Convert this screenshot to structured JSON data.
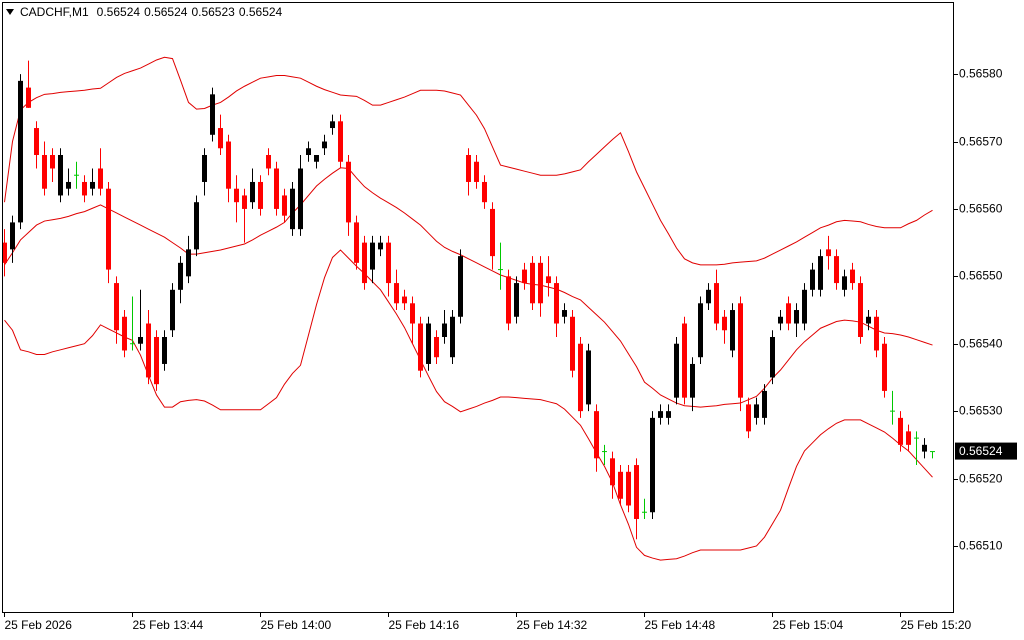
{
  "chart_data": {
    "type": "candlestick",
    "title": "CADCHF,M1",
    "categories": [
      "25 Feb 2026",
      null,
      null,
      null,
      null,
      null,
      null,
      null,
      null,
      null,
      null,
      null,
      null,
      null,
      null,
      null,
      "25 Feb 13:44",
      null,
      null,
      null,
      null,
      null,
      null,
      null,
      null,
      null,
      null,
      null,
      null,
      null,
      null,
      null,
      "25 Feb 14:00",
      null,
      null,
      null,
      null,
      null,
      null,
      null,
      null,
      null,
      null,
      null,
      null,
      null,
      null,
      null,
      "25 Feb 14:16",
      null,
      null,
      null,
      null,
      null,
      null,
      null,
      null,
      null,
      null,
      null,
      null,
      null,
      null,
      null,
      "25 Feb 14:32",
      null,
      null,
      null,
      null,
      null,
      null,
      null,
      null,
      null,
      null,
      null,
      null,
      null,
      null,
      null,
      "25 Feb 14:48",
      null,
      null,
      null,
      null,
      null,
      null,
      null,
      null,
      null,
      null,
      null,
      null,
      null,
      null,
      null,
      "25 Feb 15:04",
      null,
      null,
      null,
      null,
      null,
      null,
      null,
      null,
      null,
      null,
      null,
      null,
      null,
      null,
      null,
      "25 Feb 15:20",
      null,
      null,
      null,
      null
    ],
    "open": [
      0.56555,
      0.56554,
      0.56558,
      0.56578,
      0.56572,
      0.56568,
      0.56568,
      0.56562,
      0.56563,
      0.56565,
      0.56564,
      0.56563,
      0.56566,
      0.56563,
      0.56549,
      0.56544,
      0.5654,
      0.5654,
      0.56543,
      0.56541,
      0.56537,
      0.56542,
      0.56548,
      0.5655,
      0.56554,
      0.56564,
      0.56571,
      0.56572,
      0.5657,
      0.56563,
      0.56562,
      0.56561,
      0.56564,
      0.56568,
      0.56566,
      0.56562,
      0.56557,
      0.56557,
      0.56568,
      0.56567,
      0.56569,
      0.56572,
      0.56573,
      0.56567,
      0.56558,
      0.56555,
      0.56551,
      0.56554,
      0.56555,
      0.56549,
      0.56547,
      0.56546,
      0.56543,
      0.56537,
      0.56541,
      0.56541,
      0.56538,
      0.56544,
      0.56568,
      0.56567,
      0.56564,
      0.5656,
      0.56551,
      0.5655,
      0.56544,
      0.56551,
      0.56552,
      0.56552,
      0.5655,
      0.56549,
      0.56544,
      0.56544,
      0.5654,
      0.56531,
      0.5653,
      0.56524,
      0.56523,
      0.56521,
      0.56521,
      0.56522,
      0.56515,
      0.56515,
      0.56529,
      0.56529,
      0.56532,
      0.56543,
      0.56532,
      0.56538,
      0.56546,
      0.56549,
      0.56544,
      0.56539,
      0.56546,
      0.56531,
      0.56529,
      0.56529,
      0.56535,
      0.56543,
      0.56546,
      0.56543,
      0.56543,
      0.56548,
      0.56548,
      0.56554,
      0.56553,
      0.56548,
      0.56551,
      0.56549,
      0.56543,
      0.56544,
      0.5654,
      0.5653,
      0.56529,
      0.56527,
      0.56526,
      0.56524,
      0.56524
    ],
    "high": [
      0.56557,
      0.56559,
      0.5658,
      0.56582,
      0.56573,
      0.5657,
      0.56569,
      0.56569,
      0.56566,
      0.56567,
      0.56565,
      0.56566,
      0.56569,
      0.56564,
      0.5655,
      0.56545,
      0.56547,
      0.56548,
      0.56545,
      0.56542,
      0.56542,
      0.56549,
      0.56553,
      0.56556,
      0.56562,
      0.56569,
      0.56578,
      0.56574,
      0.56571,
      0.56565,
      0.56563,
      0.56566,
      0.56565,
      0.56569,
      0.56567,
      0.56563,
      0.56564,
      0.56568,
      0.5657,
      0.56568,
      0.56571,
      0.56574,
      0.56574,
      0.56568,
      0.56559,
      0.56556,
      0.56556,
      0.56556,
      0.56556,
      0.56551,
      0.56548,
      0.56547,
      0.56544,
      0.56544,
      0.56542,
      0.56545,
      0.56545,
      0.56554,
      0.56569,
      0.56568,
      0.56565,
      0.56561,
      0.56555,
      0.56551,
      0.5655,
      0.56552,
      0.56553,
      0.56553,
      0.56553,
      0.5655,
      0.56546,
      0.56545,
      0.56541,
      0.5654,
      0.56531,
      0.56525,
      0.56524,
      0.56522,
      0.56522,
      0.56523,
      0.56517,
      0.5653,
      0.56531,
      0.56531,
      0.56541,
      0.56544,
      0.56538,
      0.56547,
      0.56549,
      0.56551,
      0.56545,
      0.56546,
      0.56547,
      0.56532,
      0.56532,
      0.56534,
      0.56542,
      0.56545,
      0.56547,
      0.56546,
      0.56549,
      0.56552,
      0.56554,
      0.56556,
      0.56554,
      0.56551,
      0.56552,
      0.5655,
      0.56545,
      0.56545,
      0.56541,
      0.56533,
      0.5653,
      0.56528,
      0.56527,
      0.56526,
      0.56524
    ],
    "low": [
      0.5655,
      0.56552,
      0.56557,
      0.56575,
      0.56566,
      0.56562,
      0.56564,
      0.56561,
      0.56562,
      0.56563,
      0.56561,
      0.56562,
      0.56562,
      0.56549,
      0.5654,
      0.56538,
      0.56539,
      0.56539,
      0.56534,
      0.56533,
      0.56536,
      0.56541,
      0.56546,
      0.56549,
      0.56553,
      0.56562,
      0.5657,
      0.56568,
      0.56561,
      0.56558,
      0.56555,
      0.5656,
      0.56559,
      0.56565,
      0.56559,
      0.56558,
      0.56556,
      0.56556,
      0.56567,
      0.56566,
      0.56568,
      0.56571,
      0.56566,
      0.56556,
      0.56551,
      0.56548,
      0.56549,
      0.56553,
      0.56547,
      0.56545,
      0.56545,
      0.5654,
      0.56535,
      0.56536,
      0.56537,
      0.5654,
      0.56537,
      0.56543,
      0.56562,
      0.56563,
      0.5656,
      0.56551,
      0.56548,
      0.56542,
      0.56543,
      0.56548,
      0.56545,
      0.56544,
      0.56547,
      0.56541,
      0.56543,
      0.56535,
      0.56529,
      0.5653,
      0.56521,
      0.56522,
      0.56517,
      0.56516,
      0.56515,
      0.56511,
      0.56514,
      0.56514,
      0.56528,
      0.56528,
      0.56531,
      0.56531,
      0.5653,
      0.56537,
      0.56545,
      0.56542,
      0.5654,
      0.56538,
      0.5653,
      0.56526,
      0.56528,
      0.56528,
      0.56534,
      0.56542,
      0.56542,
      0.56541,
      0.56542,
      0.56547,
      0.56547,
      0.56551,
      0.56548,
      0.56547,
      0.56548,
      0.5654,
      0.56542,
      0.56538,
      0.56532,
      0.56528,
      0.56524,
      0.56524,
      0.56522,
      0.56523,
      0.56523
    ],
    "close": [
      0.56552,
      0.56558,
      0.56579,
      0.56575,
      0.56568,
      0.56563,
      0.56566,
      0.56568,
      0.56564,
      0.56565,
      0.56562,
      0.56564,
      0.56563,
      0.56551,
      0.56542,
      0.56539,
      0.5654,
      0.56541,
      0.56535,
      0.56534,
      0.56541,
      0.56548,
      0.56552,
      0.56554,
      0.56561,
      0.56568,
      0.56577,
      0.56569,
      0.56563,
      0.56561,
      0.5656,
      0.56564,
      0.5656,
      0.56566,
      0.5656,
      0.56559,
      0.56563,
      0.56566,
      0.56569,
      0.56568,
      0.5657,
      0.56573,
      0.56567,
      0.56558,
      0.56552,
      0.56549,
      0.56555,
      0.56555,
      0.56549,
      0.56546,
      0.56546,
      0.56543,
      0.56536,
      0.56543,
      0.56538,
      0.56543,
      0.56544,
      0.56553,
      0.56564,
      0.56564,
      0.56561,
      0.56553,
      0.56551,
      0.56543,
      0.56549,
      0.56549,
      0.56546,
      0.56546,
      0.56549,
      0.56543,
      0.56545,
      0.56536,
      0.5653,
      0.56539,
      0.56523,
      0.56524,
      0.56519,
      0.56517,
      0.56516,
      0.56514,
      0.56515,
      0.56529,
      0.5653,
      0.5653,
      0.5654,
      0.56532,
      0.56537,
      0.56546,
      0.56548,
      0.56543,
      0.56542,
      0.56545,
      0.56532,
      0.56527,
      0.56531,
      0.56533,
      0.56541,
      0.56544,
      0.56543,
      0.56545,
      0.56548,
      0.56551,
      0.56553,
      0.56553,
      0.56549,
      0.5655,
      0.56549,
      0.56541,
      0.56544,
      0.56539,
      0.56533,
      0.5653,
      0.56525,
      0.56525,
      0.56526,
      0.56525,
      0.56524
    ],
    "up_color": "#000000",
    "down_color": "#ff0000",
    "doji_color": "#00c800",
    "overlays": [
      {
        "color": "#e00000",
        "values": [
          0.56561,
          0.5657,
          0.565747,
          0.565758,
          0.565765,
          0.56577,
          0.565771,
          0.565773,
          0.565774,
          0.565775,
          0.565776,
          0.565778,
          0.565779,
          0.565787,
          0.565795,
          0.565801,
          0.565805,
          0.565809,
          0.565815,
          0.565821,
          0.565825,
          0.565823,
          0.565791,
          0.565758,
          0.565748,
          0.565749,
          0.565754,
          0.565758,
          0.565766,
          0.565775,
          0.565782,
          0.565788,
          0.565794,
          0.565796,
          0.565798,
          0.565798,
          0.565796,
          0.565794,
          0.565788,
          0.565782,
          0.565777,
          0.565773,
          0.565769,
          0.565768,
          0.565767,
          0.565761,
          0.565754,
          0.565754,
          0.565758,
          0.565762,
          0.565766,
          0.565771,
          0.565776,
          0.565776,
          0.565776,
          0.565775,
          0.565772,
          0.565769,
          0.565754,
          0.565739,
          0.565719,
          0.565692,
          0.565665,
          0.565662,
          0.565659,
          0.565656,
          0.565653,
          0.56565,
          0.56565,
          0.56565,
          0.565652,
          0.565655,
          0.565658,
          0.56567,
          0.565681,
          0.565692,
          0.565703,
          0.565713,
          0.565685,
          0.565655,
          0.565631,
          0.565607,
          0.565583,
          0.565563,
          0.565542,
          0.565526,
          0.56552,
          0.565517,
          0.565517,
          0.565517,
          0.565518,
          0.56552,
          0.565521,
          0.565522,
          0.565523,
          0.565527,
          0.565533,
          0.565539,
          0.565545,
          0.565551,
          0.565558,
          0.565565,
          0.565572,
          0.565576,
          0.565581,
          0.565583,
          0.565582,
          0.565581,
          0.565577,
          0.565574,
          0.565572,
          0.565572,
          0.565572,
          0.565578,
          0.565583,
          0.565591,
          0.565598
        ]
      },
      {
        "color": "#e00000",
        "values": [
          0.565517,
          0.565535,
          0.565554,
          0.565565,
          0.565576,
          0.565582,
          0.565584,
          0.565586,
          0.565589,
          0.565593,
          0.565596,
          0.565601,
          0.565606,
          0.5656,
          0.565594,
          0.565588,
          0.565582,
          0.565576,
          0.56557,
          0.565564,
          0.565558,
          0.56555,
          0.565542,
          0.565533,
          0.565533,
          0.565535,
          0.565537,
          0.565539,
          0.565542,
          0.565545,
          0.565548,
          0.565554,
          0.565561,
          0.565567,
          0.565573,
          0.56558,
          0.565594,
          0.565606,
          0.56562,
          0.565634,
          0.565644,
          0.565653,
          0.565661,
          0.56566,
          0.565646,
          0.565633,
          0.565624,
          0.565616,
          0.565609,
          0.565602,
          0.565594,
          0.565585,
          0.565576,
          0.565564,
          0.565552,
          0.565543,
          0.565537,
          0.565532,
          0.565526,
          0.56552,
          0.565514,
          0.565508,
          0.565502,
          0.565498,
          0.565494,
          0.56549,
          0.565488,
          0.565487,
          0.565484,
          0.565481,
          0.565476,
          0.56547,
          0.565465,
          0.565454,
          0.565443,
          0.565432,
          0.565418,
          0.565404,
          0.565385,
          0.565366,
          0.565343,
          0.565334,
          0.565324,
          0.565318,
          0.565312,
          0.565308,
          0.565307,
          0.565306,
          0.565307,
          0.565308,
          0.56531,
          0.565311,
          0.565312,
          0.565317,
          0.565322,
          0.565334,
          0.565349,
          0.565361,
          0.565376,
          0.565391,
          0.565403,
          0.565413,
          0.565423,
          0.565428,
          0.565433,
          0.565435,
          0.565434,
          0.565432,
          0.565426,
          0.56542,
          0.565416,
          0.565415,
          0.565413,
          0.56541,
          0.565406,
          0.565402,
          0.565398
        ]
      },
      {
        "color": "#e00000",
        "values": [
          0.565435,
          0.56542,
          0.565391,
          0.565388,
          0.565384,
          0.565384,
          0.565388,
          0.565391,
          0.565394,
          0.565397,
          0.5654,
          0.565412,
          0.565428,
          0.565422,
          0.565416,
          0.56541,
          0.565405,
          0.565383,
          0.565353,
          0.565324,
          0.565306,
          0.565306,
          0.565314,
          0.565316,
          0.565317,
          0.565315,
          0.565309,
          0.565302,
          0.565302,
          0.565302,
          0.565302,
          0.565302,
          0.565302,
          0.565311,
          0.56532,
          0.56534,
          0.565356,
          0.565368,
          0.565413,
          0.565458,
          0.565498,
          0.565528,
          0.565539,
          0.565527,
          0.565515,
          0.565504,
          0.565492,
          0.56548,
          0.565462,
          0.565444,
          0.565424,
          0.5654,
          0.565376,
          0.565352,
          0.565329,
          0.565314,
          0.565307,
          0.565299,
          0.565303,
          0.565307,
          0.565312,
          0.565316,
          0.565321,
          0.565321,
          0.56532,
          0.565319,
          0.565318,
          0.565317,
          0.565314,
          0.565311,
          0.565303,
          0.565291,
          0.565279,
          0.565259,
          0.565238,
          0.565218,
          0.565194,
          0.565161,
          0.565132,
          0.565098,
          0.565086,
          0.565082,
          0.565079,
          0.56508,
          0.565081,
          0.565085,
          0.56509,
          0.565094,
          0.565094,
          0.565094,
          0.565094,
          0.565094,
          0.565094,
          0.565097,
          0.5651,
          0.565113,
          0.565133,
          0.565153,
          0.565186,
          0.565218,
          0.565241,
          0.565253,
          0.565265,
          0.565274,
          0.565282,
          0.565287,
          0.565287,
          0.565287,
          0.565281,
          0.565275,
          0.565269,
          0.56526,
          0.56525,
          0.565241,
          0.565228,
          0.565215,
          0.565202
        ]
      }
    ],
    "ylim": [
      0.565002,
      0.565907
    ],
    "yticks": [
      {
        "value": 0.5651,
        "label": "0.56510"
      },
      {
        "value": 0.5652,
        "label": "0.56520"
      },
      {
        "value": 0.5653,
        "label": "0.56530"
      },
      {
        "value": 0.5654,
        "label": "0.56540"
      },
      {
        "value": 0.5655,
        "label": "0.56550"
      },
      {
        "value": 0.5656,
        "label": "0.56560"
      },
      {
        "value": 0.5657,
        "label": "0.56570"
      },
      {
        "value": 0.5658,
        "label": "0.56580"
      }
    ]
  }
}
